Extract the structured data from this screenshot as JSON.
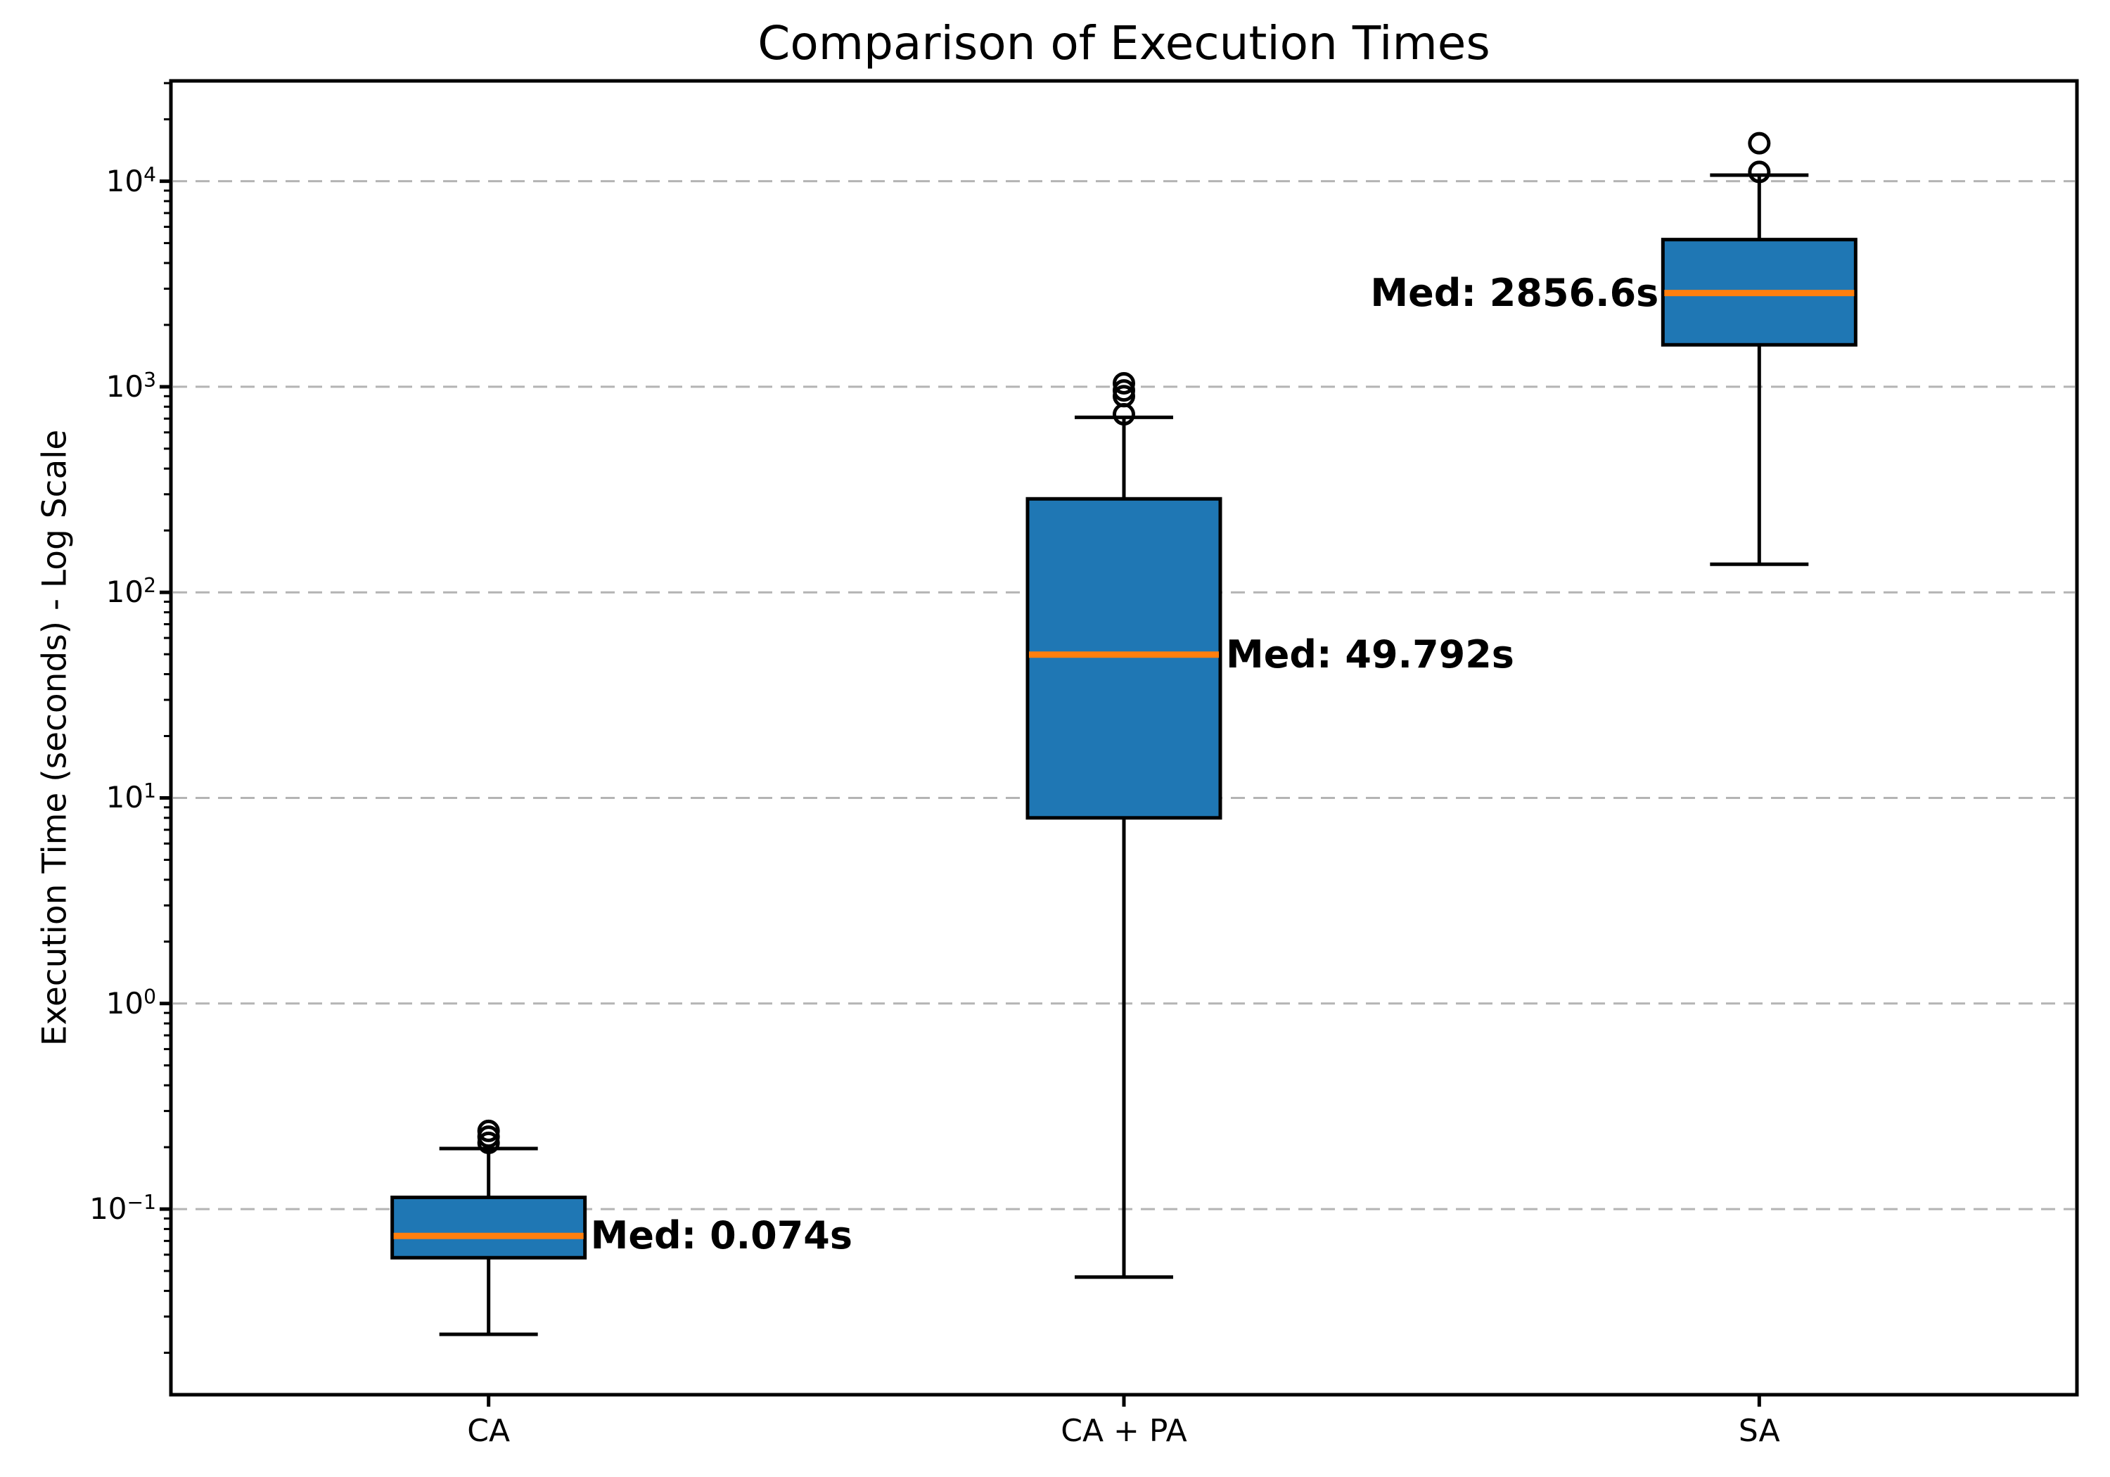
{
  "title": "Comparison of Execution Times",
  "y_axis": {
    "label": "Execution Time (seconds) - Log Scale",
    "tick_exponents": [
      4,
      3,
      2,
      1,
      0,
      -1
    ]
  },
  "x_axis": {
    "categories": [
      "CA",
      "CA + PA",
      "SA"
    ]
  },
  "chart_data": {
    "type": "boxplot",
    "title": "Comparison of Execution Times",
    "ylabel": "Execution Time (seconds) - Log Scale",
    "y_scale": "log",
    "ylim_log10": [
      -1.903,
      4.488
    ],
    "grid": "dashed horizontal major gridlines",
    "categories": [
      "CA",
      "CA + PA",
      "SA"
    ],
    "series": [
      {
        "name": "CA",
        "whisker_low": 0.0246,
        "q1": 0.058,
        "median": 0.074,
        "q3": 0.114,
        "whisker_high": 0.197,
        "outliers": [
          0.21,
          0.225,
          0.24
        ],
        "median_label": "Med: 0.074s",
        "label_side": "right"
      },
      {
        "name": "CA + PA",
        "whisker_low": 0.0467,
        "q1": 8.0,
        "median": 49.792,
        "q3": 285,
        "whisker_high": 710,
        "outliers": [
          735,
          900,
          960,
          1040
        ],
        "median_label": "Med: 49.792s",
        "label_side": "right"
      },
      {
        "name": "SA",
        "whisker_low": 137,
        "q1": 1600,
        "median": 2856.6,
        "q3": 5200,
        "whisker_high": 10700,
        "outliers": [
          11100,
          15300
        ],
        "median_label": "Med: 2856.6s",
        "label_side": "left"
      }
    ],
    "colors": {
      "box_fill": "#1f77b4",
      "box_edge": "#000000",
      "median_line": "#ff7f0e",
      "whisker": "#000000",
      "outlier_edge": "#000000",
      "grid": "#b4b4b4",
      "background": "#ffffff"
    }
  }
}
